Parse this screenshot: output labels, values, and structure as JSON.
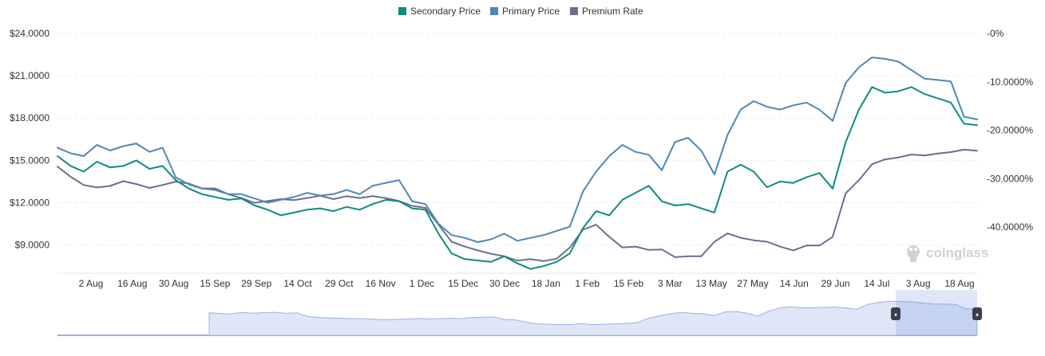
{
  "chart_data": {
    "type": "line",
    "title": "",
    "legend": {
      "position": "top-center",
      "items": [
        {
          "name": "Secondary Price",
          "color": "#0e8c82"
        },
        {
          "name": "Primary Price",
          "color": "#4f86b8"
        },
        {
          "name": "Premium Rate",
          "color": "#6b6f8d"
        }
      ]
    },
    "x_tick_labels": [
      "2 Aug",
      "16 Aug",
      "30 Aug",
      "15 Sep",
      "29 Sep",
      "14 Oct",
      "29 Oct",
      "16 Nov",
      "1 Dec",
      "15 Dec",
      "30 Dec",
      "18 Jan",
      "1 Feb",
      "15 Feb",
      "3 Mar",
      "13 May",
      "27 May",
      "14 Jun",
      "29 Jun",
      "14 Jul",
      "3 Aug",
      "18 Aug"
    ],
    "y_left": {
      "ticks": [
        {
          "value": 9,
          "label": "$9.0000"
        },
        {
          "value": 12,
          "label": "$12.0000"
        },
        {
          "value": 15,
          "label": "$15.0000"
        },
        {
          "value": 18,
          "label": "$18.0000"
        },
        {
          "value": 21,
          "label": "$21.0000"
        },
        {
          "value": 24,
          "label": "$24.0000"
        }
      ],
      "range": [
        7,
        24
      ]
    },
    "y_right": {
      "ticks": [
        {
          "value": 0,
          "label": "-0%"
        },
        {
          "value": -10,
          "label": "-10.0000%"
        },
        {
          "value": -20,
          "label": "-20.0000%"
        },
        {
          "value": -30,
          "label": "-30.0000%"
        },
        {
          "value": -40,
          "label": "-40.0000%"
        }
      ],
      "range": [
        -49.5,
        0
      ]
    },
    "grid": true,
    "series": [
      {
        "name": "Secondary Price",
        "axis": "left",
        "color": "#0e8c82",
        "values": [
          15.3,
          14.6,
          14.2,
          14.9,
          14.5,
          14.6,
          15.0,
          14.4,
          14.6,
          13.6,
          13.0,
          12.6,
          12.4,
          12.2,
          12.3,
          11.8,
          11.5,
          11.1,
          11.3,
          11.5,
          11.6,
          11.4,
          11.7,
          11.5,
          11.9,
          12.2,
          12.1,
          11.6,
          11.5,
          9.8,
          8.4,
          8.0,
          7.9,
          7.8,
          8.2,
          7.7,
          7.3,
          7.5,
          7.8,
          8.4,
          10.2,
          11.4,
          11.1,
          12.2,
          12.7,
          13.2,
          12.1,
          11.8,
          11.9,
          11.6,
          11.3,
          14.2,
          14.7,
          14.2,
          13.1,
          13.5,
          13.4,
          13.8,
          14.1,
          13.0,
          16.3,
          18.6,
          20.2,
          19.8,
          19.9,
          20.2,
          19.7,
          19.4,
          19.1,
          17.6,
          17.5
        ]
      },
      {
        "name": "Primary Price",
        "axis": "left",
        "color": "#4f86b8",
        "values": [
          15.9,
          15.5,
          15.3,
          16.1,
          15.7,
          16.0,
          16.2,
          15.6,
          15.9,
          13.8,
          13.3,
          13.0,
          12.9,
          12.6,
          12.6,
          12.3,
          12.0,
          12.2,
          12.4,
          12.7,
          12.5,
          12.6,
          12.9,
          12.6,
          13.2,
          13.4,
          13.6,
          12.1,
          11.9,
          10.5,
          9.7,
          9.5,
          9.2,
          9.4,
          9.8,
          9.3,
          9.5,
          9.7,
          10.0,
          10.3,
          12.8,
          14.2,
          15.3,
          16.1,
          15.6,
          15.4,
          14.3,
          16.3,
          16.6,
          15.7,
          14.0,
          16.8,
          18.6,
          19.2,
          18.8,
          18.6,
          18.9,
          19.1,
          18.6,
          17.8,
          20.5,
          21.6,
          22.3,
          22.2,
          22.0,
          21.4,
          20.8,
          20.7,
          20.6,
          18.1,
          17.9
        ]
      },
      {
        "name": "Premium Rate",
        "axis": "right",
        "color": "#6b6f8d",
        "values": [
          -27.5,
          -29.6,
          -31.3,
          -31.8,
          -31.5,
          -30.5,
          -31.1,
          -31.9,
          -31.3,
          -30.6,
          -31.0,
          -32.0,
          -32.0,
          -33.2,
          -34.0,
          -35.0,
          -34.6,
          -34.2,
          -34.4,
          -34.0,
          -33.5,
          -34.2,
          -33.6,
          -34.0,
          -33.6,
          -34.0,
          -34.6,
          -35.6,
          -36.0,
          -39.5,
          -43.0,
          -44.0,
          -44.8,
          -45.5,
          -46.0,
          -46.9,
          -46.6,
          -47.0,
          -46.5,
          -44.2,
          -40.5,
          -39.5,
          -42.0,
          -44.2,
          -44.0,
          -44.7,
          -44.6,
          -46.2,
          -46.0,
          -46.0,
          -43.0,
          -41.3,
          -42.2,
          -42.7,
          -43.0,
          -44.0,
          -44.8,
          -43.8,
          -43.8,
          -42.0,
          -33.0,
          -30.3,
          -27.0,
          -26.0,
          -25.6,
          -25.0,
          -25.2,
          -24.8,
          -24.5,
          -24.0,
          -24.2
        ]
      }
    ]
  },
  "navigator": {
    "handle_left_glyph": "⏸",
    "handle_right_glyph": "⏸"
  },
  "watermark": {
    "text": "coinglass",
    "icon": "coinglass-logo-icon"
  }
}
